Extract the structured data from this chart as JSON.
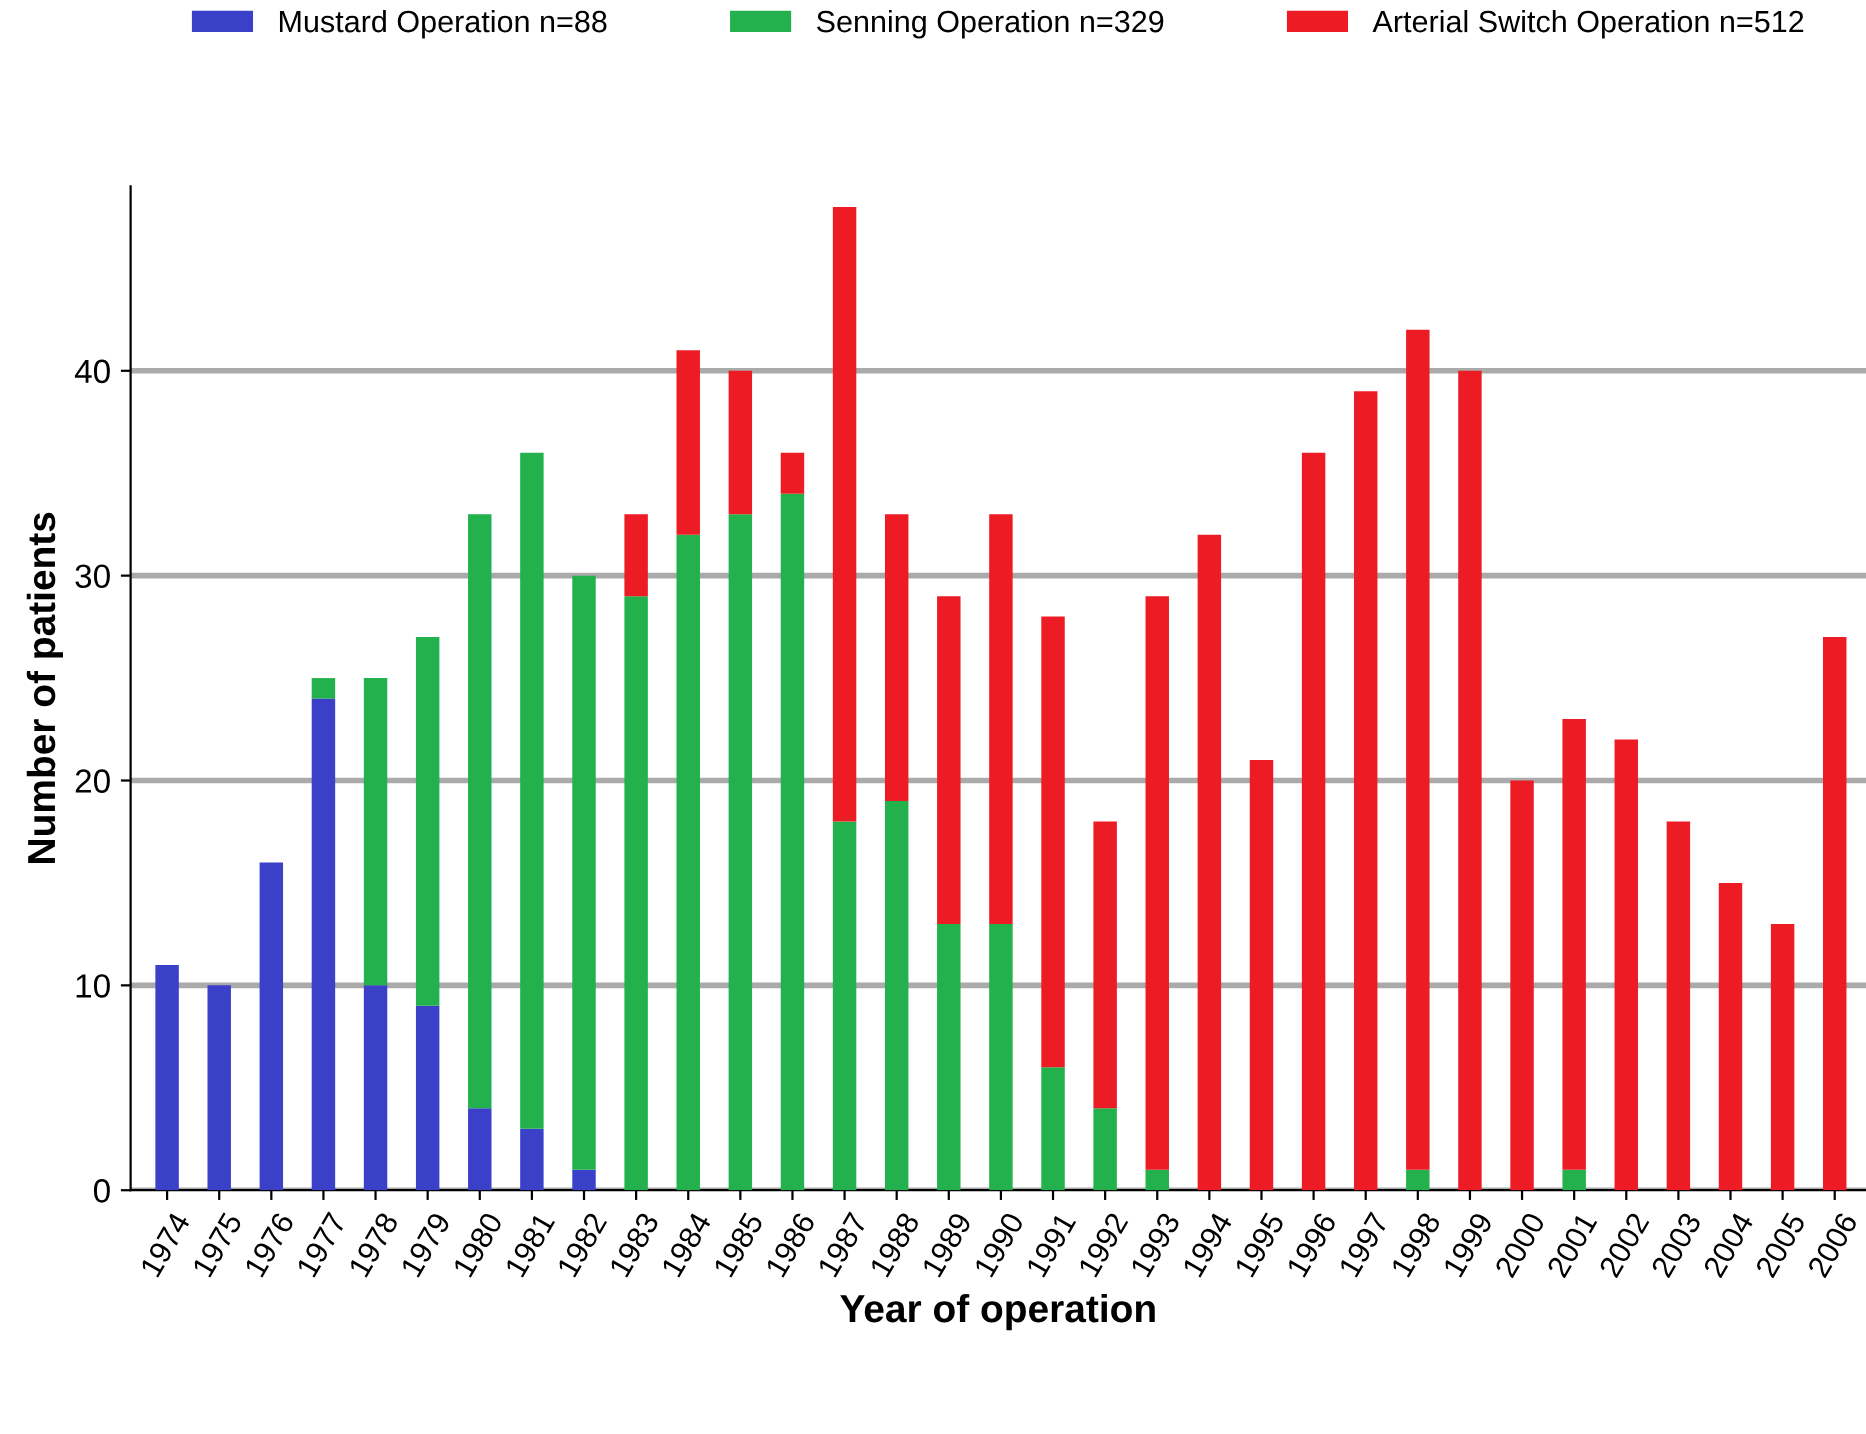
{
  "chart_data": {
    "type": "bar",
    "stacked": true,
    "xlabel": "Year of operation",
    "ylabel": "Number of patients",
    "categories": [
      "1974",
      "1975",
      "1976",
      "1977",
      "1978",
      "1979",
      "1980",
      "1981",
      "1982",
      "1983",
      "1984",
      "1985",
      "1986",
      "1987",
      "1988",
      "1989",
      "1990",
      "1991",
      "1992",
      "1993",
      "1994",
      "1995",
      "1996",
      "1997",
      "1998",
      "1999",
      "2000",
      "2001",
      "2002",
      "2003",
      "2004",
      "2005",
      "2006"
    ],
    "series": [
      {
        "name": "Mustard Operation n=88",
        "color": "#3b40c8",
        "values": [
          11,
          10,
          16,
          24,
          10,
          9,
          4,
          3,
          1,
          0,
          0,
          0,
          0,
          0,
          0,
          0,
          0,
          0,
          0,
          0,
          0,
          0,
          0,
          0,
          0,
          0,
          0,
          0,
          0,
          0,
          0,
          0,
          0
        ]
      },
      {
        "name": "Senning Operation n=329",
        "color": "#22b14c",
        "values": [
          0,
          0,
          0,
          1,
          15,
          18,
          29,
          33,
          29,
          29,
          32,
          33,
          34,
          18,
          19,
          13,
          13,
          6,
          4,
          1,
          0,
          0,
          0,
          0,
          1,
          0,
          0,
          1,
          0,
          0,
          0,
          0,
          0
        ]
      },
      {
        "name": "Arterial Switch Operation n=512",
        "color": "#ed1c24",
        "values": [
          0,
          0,
          0,
          0,
          0,
          0,
          0,
          0,
          0,
          4,
          9,
          7,
          2,
          30,
          14,
          16,
          20,
          22,
          14,
          28,
          32,
          21,
          36,
          39,
          41,
          40,
          20,
          22,
          22,
          18,
          15,
          13,
          27
        ]
      }
    ],
    "ylim": [
      0,
      49
    ],
    "yticks": [
      0,
      10,
      20,
      30,
      40
    ],
    "grid": "y",
    "legend": "top"
  }
}
